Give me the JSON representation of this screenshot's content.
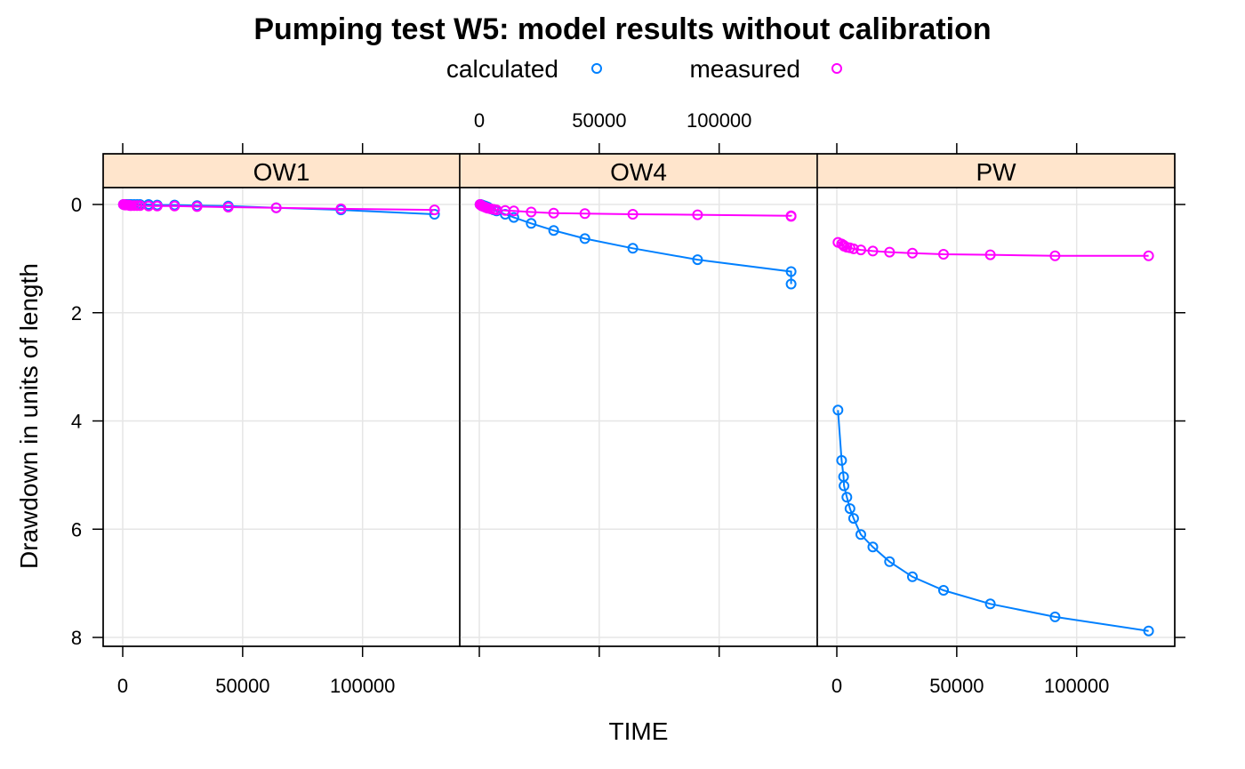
{
  "chart_data": {
    "type": "line",
    "title": "Pumping test W5: model results without calibration",
    "xlabel": "TIME",
    "ylabel": "Drawdown in units of length",
    "legend_position": "top",
    "legend": [
      {
        "label": "calculated",
        "color": "#0080ff"
      },
      {
        "label": "measured",
        "color": "#ff00ff"
      }
    ],
    "xlim": [
      0,
      132000
    ],
    "ylim": [
      8,
      0
    ],
    "y_reversed": true,
    "grid": true,
    "x_ticks": [
      0,
      50000,
      100000
    ],
    "x_tick_labels": [
      "0",
      "50000",
      "100000"
    ],
    "y_ticks": [
      0,
      2,
      4,
      6,
      8
    ],
    "y_tick_labels": [
      "0",
      "2",
      "4",
      "6",
      "8"
    ],
    "strip_color": "#ffe5cc",
    "time": [
      300,
      600,
      900,
      1200,
      1800,
      2400,
      3000,
      3600,
      4800,
      6000,
      7200,
      10800,
      14400,
      21600,
      31000,
      44000,
      64000,
      91000,
      130000
    ],
    "panels": [
      {
        "name": "OW1",
        "series": [
          {
            "name": "calculated",
            "values": [
              0.0,
              0.0,
              0.0,
              0.0,
              0.0,
              0.0,
              0.0,
              0.0,
              0.0,
              0.0,
              0.0,
              0.0,
              0.01,
              0.01,
              0.02,
              0.03,
              0.06,
              0.1,
              0.18
            ]
          },
          {
            "name": "measured",
            "values": [
              0.0,
              0.0,
              0.01,
              0.01,
              0.01,
              0.01,
              0.02,
              0.02,
              0.02,
              0.02,
              0.02,
              0.03,
              0.03,
              0.03,
              0.04,
              0.05,
              0.06,
              0.08,
              0.1
            ]
          }
        ]
      },
      {
        "name": "OW4",
        "series": [
          {
            "name": "calculated",
            "values": [
              0.0,
              0.0,
              0.01,
              0.01,
              0.02,
              0.03,
              0.04,
              0.05,
              0.08,
              0.1,
              0.12,
              0.18,
              0.24,
              0.35,
              0.48,
              0.63,
              0.81,
              1.02,
              1.24,
              1.47
            ]
          },
          {
            "name": "measured",
            "values": [
              0.0,
              0.01,
              0.02,
              0.03,
              0.04,
              0.05,
              0.06,
              0.07,
              0.08,
              0.09,
              0.1,
              0.11,
              0.12,
              0.14,
              0.16,
              0.17,
              0.18,
              0.19,
              0.21,
              0.22
            ]
          }
        ],
        "time": [
          300,
          600,
          900,
          1200,
          1800,
          2400,
          3000,
          3600,
          4800,
          6000,
          7200,
          10800,
          14400,
          21600,
          31000,
          44000,
          64000,
          91000,
          130000,
          130000
        ]
      },
      {
        "name": "PW",
        "series": [
          {
            "name": "calculated",
            "values": [
              3.8,
              4.73,
              5.03,
              5.2,
              5.41,
              5.62,
              5.8,
              6.1,
              6.33,
              6.6,
              6.88,
              7.13,
              7.38,
              7.62,
              7.88
            ]
          },
          {
            "name": "measured",
            "values": [
              0.7,
              0.73,
              0.75,
              0.77,
              0.79,
              0.8,
              0.82,
              0.84,
              0.86,
              0.88,
              0.9,
              0.92,
              0.93,
              0.95,
              0.95
            ]
          }
        ],
        "time": [
          500,
          2000,
          2800,
          3000,
          4200,
          5500,
          7000,
          10000,
          15000,
          22000,
          31500,
          44500,
          64000,
          91000,
          130000
        ]
      }
    ]
  }
}
